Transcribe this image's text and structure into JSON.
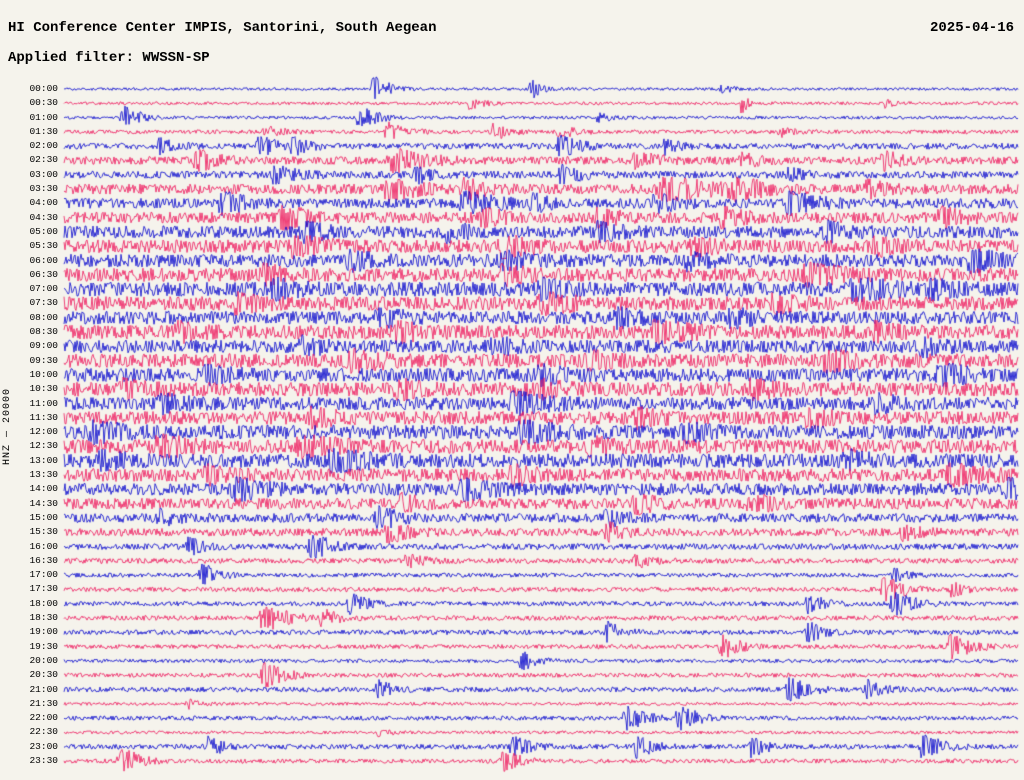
{
  "header": {
    "title": "HI Conference Center IMPIS, Santorini, South Aegean",
    "date": "2025-04-16",
    "filter_label": "Applied filter: WWSSN-SP"
  },
  "axis": {
    "left_label": "HNZ — 20000"
  },
  "chart_data": {
    "type": "seismogram",
    "title": "HI Conference Center IMPIS, Santorini, South Aegean",
    "date": "2025-04-16",
    "filter": "WWSSN-SP",
    "channel_scale_label": "HNZ — 20000",
    "row_interval_minutes": 30,
    "background": "#f5f3ec",
    "trace_colors": {
      "blue": "#0000cd",
      "red": "#ed145b"
    },
    "legend": "alternating blue/red traces, one row per 30 minutes, 00:00 to 23:30",
    "rows": [
      {
        "label": "00:00",
        "color": "blue",
        "amp": 0.045,
        "events": [
          [
            0.325,
            0.75,
            0.012
          ],
          [
            0.49,
            0.45,
            0.01
          ],
          [
            0.69,
            0.15,
            0.01
          ]
        ]
      },
      {
        "label": "00:30",
        "color": "red",
        "amp": 0.05,
        "events": [
          [
            0.425,
            0.22,
            0.012
          ],
          [
            0.71,
            0.5,
            0.006
          ],
          [
            0.86,
            0.15,
            0.01
          ]
        ]
      },
      {
        "label": "01:00",
        "color": "blue",
        "amp": 0.05,
        "events": [
          [
            0.062,
            0.7,
            0.012
          ],
          [
            0.31,
            0.55,
            0.014
          ],
          [
            0.56,
            0.2,
            0.012
          ]
        ]
      },
      {
        "label": "01:30",
        "color": "red",
        "amp": 0.065,
        "events": [
          [
            0.21,
            0.25,
            0.015
          ],
          [
            0.34,
            0.4,
            0.015
          ],
          [
            0.45,
            0.35,
            0.012
          ],
          [
            0.52,
            0.3,
            0.012
          ],
          [
            0.75,
            0.2,
            0.012
          ]
        ]
      },
      {
        "label": "02:00",
        "color": "blue",
        "amp": 0.1,
        "events": [
          [
            0.1,
            0.3,
            0.012
          ],
          [
            0.205,
            0.55,
            0.012
          ],
          [
            0.24,
            0.4,
            0.012
          ],
          [
            0.52,
            0.5,
            0.015
          ],
          [
            0.63,
            0.3,
            0.012
          ]
        ]
      },
      {
        "label": "02:30",
        "color": "red",
        "amp": 0.13,
        "events": [
          [
            0.14,
            0.6,
            0.015
          ],
          [
            0.345,
            0.85,
            0.02
          ],
          [
            0.6,
            0.4,
            0.015
          ],
          [
            0.71,
            0.35,
            0.012
          ],
          [
            0.86,
            0.45,
            0.015
          ]
        ]
      },
      {
        "label": "03:00",
        "color": "blue",
        "amp": 0.12,
        "events": [
          [
            0.22,
            0.5,
            0.015
          ],
          [
            0.37,
            0.35,
            0.012
          ],
          [
            0.52,
            0.45,
            0.015
          ],
          [
            0.76,
            0.3,
            0.012
          ]
        ]
      },
      {
        "label": "03:30",
        "color": "red",
        "amp": 0.17,
        "events": [
          [
            0.34,
            0.85,
            0.018
          ],
          [
            0.42,
            0.6,
            0.015
          ],
          [
            0.63,
            0.85,
            0.03
          ],
          [
            0.7,
            0.8,
            0.02
          ],
          [
            0.84,
            0.5,
            0.015
          ]
        ]
      },
      {
        "label": "04:00",
        "color": "blue",
        "amp": 0.17,
        "events": [
          [
            0.165,
            0.8,
            0.015
          ],
          [
            0.42,
            0.9,
            0.018
          ],
          [
            0.49,
            0.5,
            0.012
          ],
          [
            0.62,
            0.45,
            0.015
          ],
          [
            0.76,
            0.75,
            0.018
          ]
        ]
      },
      {
        "label": "04:30",
        "color": "red",
        "amp": 0.19,
        "events": [
          [
            0.23,
            0.85,
            0.018
          ],
          [
            0.44,
            0.5,
            0.015
          ],
          [
            0.56,
            0.45,
            0.015
          ],
          [
            0.69,
            0.55,
            0.015
          ],
          [
            0.92,
            0.5,
            0.015
          ]
        ]
      },
      {
        "label": "05:00",
        "color": "blue",
        "amp": 0.21,
        "events": [
          [
            0.25,
            0.6,
            0.015
          ],
          [
            0.4,
            0.55,
            0.015
          ],
          [
            0.56,
            0.5,
            0.015
          ],
          [
            0.8,
            0.55,
            0.015
          ]
        ]
      },
      {
        "label": "05:30",
        "color": "red",
        "amp": 0.23,
        "events": [
          [
            0.24,
            0.8,
            0.018
          ],
          [
            0.46,
            0.85,
            0.018
          ],
          [
            0.66,
            0.5,
            0.015
          ],
          [
            0.85,
            0.55,
            0.015
          ]
        ]
      },
      {
        "label": "06:00",
        "color": "blue",
        "amp": 0.23,
        "events": [
          [
            0.3,
            0.6,
            0.015
          ],
          [
            0.46,
            0.55,
            0.015
          ],
          [
            0.65,
            0.55,
            0.015
          ],
          [
            0.95,
            0.85,
            0.018
          ]
        ]
      },
      {
        "label": "06:30",
        "color": "red",
        "amp": 0.24,
        "events": [
          [
            0.21,
            0.6,
            0.015
          ],
          [
            0.46,
            0.6,
            0.015
          ],
          [
            0.78,
            0.85,
            0.02
          ]
        ]
      },
      {
        "label": "07:00",
        "color": "blue",
        "amp": 0.26,
        "events": [
          [
            0.22,
            0.6,
            0.015
          ],
          [
            0.5,
            0.6,
            0.015
          ],
          [
            0.83,
            0.95,
            0.022
          ],
          [
            0.91,
            0.6,
            0.015
          ]
        ]
      },
      {
        "label": "07:30",
        "color": "red",
        "amp": 0.25,
        "events": [
          [
            0.18,
            0.55,
            0.015
          ],
          [
            0.5,
            0.85,
            0.018
          ],
          [
            0.74,
            0.6,
            0.015
          ]
        ]
      },
      {
        "label": "08:00",
        "color": "blue",
        "amp": 0.23,
        "events": [
          [
            0.33,
            0.6,
            0.015
          ],
          [
            0.58,
            0.55,
            0.015
          ],
          [
            0.7,
            0.5,
            0.015
          ]
        ]
      },
      {
        "label": "08:30",
        "color": "red",
        "amp": 0.25,
        "events": [
          [
            0.12,
            0.55,
            0.015
          ],
          [
            0.35,
            0.6,
            0.015
          ],
          [
            0.62,
            0.85,
            0.02
          ],
          [
            0.85,
            0.5,
            0.015
          ]
        ]
      },
      {
        "label": "09:00",
        "color": "blue",
        "amp": 0.23,
        "events": [
          [
            0.25,
            0.55,
            0.015
          ],
          [
            0.45,
            0.5,
            0.015
          ],
          [
            0.9,
            0.6,
            0.015
          ]
        ]
      },
      {
        "label": "09:30",
        "color": "red",
        "amp": 0.25,
        "events": [
          [
            0.3,
            0.85,
            0.02
          ],
          [
            0.55,
            0.55,
            0.015
          ],
          [
            0.8,
            0.8,
            0.018
          ]
        ]
      },
      {
        "label": "10:00",
        "color": "blue",
        "amp": 0.24,
        "events": [
          [
            0.15,
            0.55,
            0.015
          ],
          [
            0.5,
            0.55,
            0.015
          ],
          [
            0.92,
            0.8,
            0.018
          ]
        ]
      },
      {
        "label": "10:30",
        "color": "red",
        "amp": 0.25,
        "events": [
          [
            0.06,
            0.55,
            0.015
          ],
          [
            0.35,
            0.6,
            0.015
          ],
          [
            0.5,
            0.55,
            0.015
          ],
          [
            0.72,
            0.6,
            0.015
          ]
        ]
      },
      {
        "label": "11:00",
        "color": "blue",
        "amp": 0.23,
        "events": [
          [
            0.1,
            0.6,
            0.015
          ],
          [
            0.47,
            0.95,
            0.02
          ],
          [
            0.85,
            0.55,
            0.015
          ]
        ]
      },
      {
        "label": "11:30",
        "color": "red",
        "amp": 0.23,
        "events": [
          [
            0.26,
            0.6,
            0.015
          ],
          [
            0.6,
            0.6,
            0.015
          ],
          [
            0.78,
            0.55,
            0.015
          ]
        ]
      },
      {
        "label": "12:00",
        "color": "blue",
        "amp": 0.25,
        "events": [
          [
            0.03,
            0.85,
            0.018
          ],
          [
            0.48,
            0.85,
            0.02
          ],
          [
            0.65,
            0.55,
            0.015
          ]
        ]
      },
      {
        "label": "12:30",
        "color": "red",
        "amp": 0.25,
        "events": [
          [
            0.1,
            0.85,
            0.018
          ],
          [
            0.25,
            0.85,
            0.02
          ],
          [
            0.55,
            0.6,
            0.015
          ]
        ]
      },
      {
        "label": "13:00",
        "color": "blue",
        "amp": 0.25,
        "events": [
          [
            0.04,
            0.6,
            0.015
          ],
          [
            0.28,
            0.95,
            0.022
          ],
          [
            0.82,
            0.6,
            0.015
          ]
        ]
      },
      {
        "label": "13:30",
        "color": "red",
        "amp": 0.23,
        "events": [
          [
            0.15,
            0.55,
            0.015
          ],
          [
            0.47,
            0.6,
            0.015
          ],
          [
            0.93,
            0.8,
            0.018
          ]
        ]
      },
      {
        "label": "14:00",
        "color": "blue",
        "amp": 0.21,
        "events": [
          [
            0.18,
            0.85,
            0.018
          ],
          [
            0.42,
            0.75,
            0.018
          ],
          [
            0.99,
            0.6,
            0.012
          ]
        ]
      },
      {
        "label": "14:30",
        "color": "red",
        "amp": 0.19,
        "events": [
          [
            0.35,
            0.55,
            0.015
          ],
          [
            0.6,
            0.5,
            0.015
          ],
          [
            0.72,
            0.5,
            0.015
          ]
        ]
      },
      {
        "label": "15:00",
        "color": "blue",
        "amp": 0.15,
        "events": [
          [
            0.1,
            0.45,
            0.012
          ],
          [
            0.33,
            0.65,
            0.015
          ],
          [
            0.57,
            0.45,
            0.015
          ]
        ]
      },
      {
        "label": "15:30",
        "color": "red",
        "amp": 0.13,
        "events": [
          [
            0.34,
            0.5,
            0.015
          ],
          [
            0.57,
            0.45,
            0.012
          ],
          [
            0.88,
            0.4,
            0.012
          ]
        ]
      },
      {
        "label": "16:00",
        "color": "blue",
        "amp": 0.1,
        "events": [
          [
            0.13,
            0.4,
            0.012
          ],
          [
            0.26,
            0.7,
            0.015
          ]
        ]
      },
      {
        "label": "16:30",
        "color": "red",
        "amp": 0.085,
        "events": [
          [
            0.36,
            0.35,
            0.012
          ],
          [
            0.6,
            0.3,
            0.012
          ]
        ]
      },
      {
        "label": "17:00",
        "color": "blue",
        "amp": 0.07,
        "events": [
          [
            0.145,
            0.6,
            0.012
          ],
          [
            0.87,
            0.3,
            0.01
          ]
        ]
      },
      {
        "label": "17:30",
        "color": "red",
        "amp": 0.075,
        "events": [
          [
            0.86,
            0.75,
            0.014
          ],
          [
            0.93,
            0.35,
            0.01
          ]
        ]
      },
      {
        "label": "18:00",
        "color": "blue",
        "amp": 0.075,
        "events": [
          [
            0.3,
            0.6,
            0.012
          ],
          [
            0.78,
            0.5,
            0.012
          ],
          [
            0.87,
            0.75,
            0.014
          ]
        ]
      },
      {
        "label": "18:30",
        "color": "red",
        "amp": 0.08,
        "events": [
          [
            0.21,
            1.0,
            0.016
          ],
          [
            0.27,
            0.5,
            0.012
          ]
        ]
      },
      {
        "label": "19:00",
        "color": "blue",
        "amp": 0.08,
        "events": [
          [
            0.57,
            0.5,
            0.012
          ],
          [
            0.78,
            0.5,
            0.012
          ]
        ]
      },
      {
        "label": "19:30",
        "color": "red",
        "amp": 0.07,
        "events": [
          [
            0.69,
            0.7,
            0.012
          ],
          [
            0.93,
            0.8,
            0.014
          ]
        ]
      },
      {
        "label": "20:00",
        "color": "blue",
        "amp": 0.06,
        "events": [
          [
            0.48,
            0.4,
            0.012
          ]
        ]
      },
      {
        "label": "20:30",
        "color": "red",
        "amp": 0.07,
        "events": [
          [
            0.21,
            0.85,
            0.014
          ]
        ]
      },
      {
        "label": "21:00",
        "color": "blue",
        "amp": 0.08,
        "events": [
          [
            0.33,
            0.4,
            0.012
          ],
          [
            0.76,
            0.7,
            0.014
          ],
          [
            0.84,
            0.5,
            0.012
          ]
        ]
      },
      {
        "label": "21:30",
        "color": "red",
        "amp": 0.05,
        "events": [
          [
            0.13,
            0.2,
            0.01
          ]
        ]
      },
      {
        "label": "22:00",
        "color": "blue",
        "amp": 0.07,
        "events": [
          [
            0.59,
            0.7,
            0.014
          ],
          [
            0.645,
            0.8,
            0.014
          ]
        ]
      },
      {
        "label": "22:30",
        "color": "red",
        "amp": 0.05,
        "events": [
          [
            0.33,
            0.2,
            0.01
          ]
        ]
      },
      {
        "label": "23:00",
        "color": "blue",
        "amp": 0.08,
        "events": [
          [
            0.15,
            0.5,
            0.012
          ],
          [
            0.47,
            0.6,
            0.012
          ],
          [
            0.6,
            0.6,
            0.012
          ],
          [
            0.72,
            0.55,
            0.012
          ],
          [
            0.9,
            0.7,
            0.014
          ]
        ]
      },
      {
        "label": "23:30",
        "color": "red",
        "amp": 0.07,
        "events": [
          [
            0.06,
            0.8,
            0.014
          ],
          [
            0.46,
            0.6,
            0.012
          ]
        ]
      }
    ]
  }
}
